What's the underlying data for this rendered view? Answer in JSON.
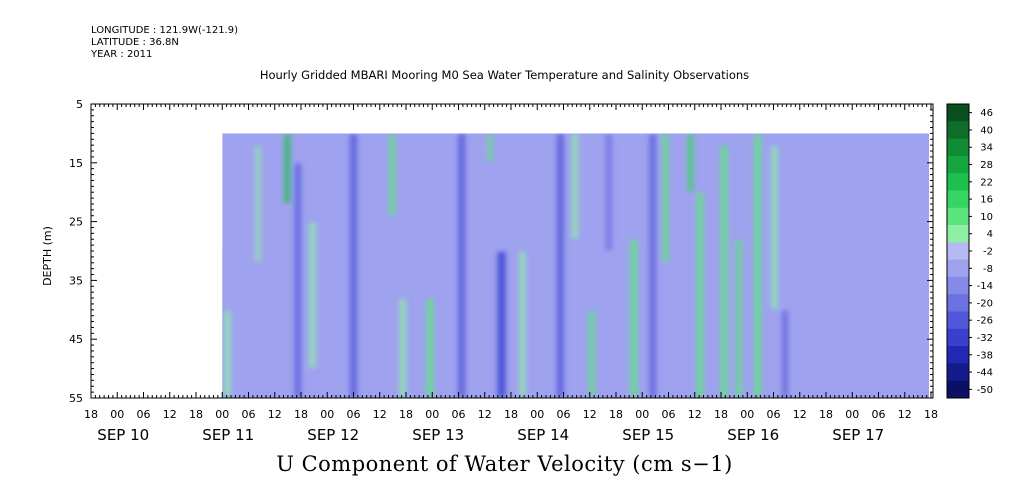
{
  "header": {
    "longitude": "LONGITUDE : 121.9W(-121.9)",
    "latitude": "LATITUDE : 36.8N",
    "year": "YEAR : 2011"
  },
  "chart_data": {
    "type": "heatmap",
    "title": "Hourly Gridded MBARI Mooring M0 Sea Water Temperature and Salinity Observations",
    "xlabel": "U Component of Water Velocity (cm s−1)",
    "ylabel": "DEPTH (m)",
    "ylim": [
      55,
      5
    ],
    "y_ticks": [
      5,
      15,
      25,
      35,
      45,
      55
    ],
    "x_hour_ticks": [
      "18",
      "00",
      "06",
      "12",
      "18",
      "00",
      "06",
      "12",
      "18",
      "00",
      "06",
      "12",
      "18",
      "00",
      "06",
      "12",
      "18",
      "00",
      "06",
      "12",
      "18",
      "00",
      "06",
      "12",
      "18",
      "00",
      "06",
      "12",
      "18",
      "00",
      "06",
      "12",
      "18"
    ],
    "x_day_labels": [
      "SEP 10",
      "SEP 11",
      "SEP 12",
      "SEP 13",
      "SEP 14",
      "SEP 15",
      "SEP 16",
      "SEP 17"
    ],
    "colorbar_labels": [
      "46",
      "40",
      "34",
      "28",
      "22",
      "16",
      "10",
      "4",
      "-2",
      "-8",
      "-14",
      "-20",
      "-26",
      "-32",
      "-38",
      "-44",
      "-50"
    ],
    "colorbar_colors": [
      "#0b4f1f",
      "#0e6e29",
      "#118b34",
      "#15a640",
      "#1cc04d",
      "#36d463",
      "#5ce47f",
      "#8ff0a5",
      "#b7b9f2",
      "#9fa2ef",
      "#868be9",
      "#6c71e2",
      "#5157d9",
      "#3840cd",
      "#2328b2",
      "#151a8c",
      "#0b0f66"
    ],
    "data_extent": {
      "depth_top": 10,
      "depth_bottom": 55
    },
    "bands": [
      {
        "day": 1.54,
        "width": 0.07,
        "value": 16,
        "depth_range": [
          10,
          28
        ]
      },
      {
        "day": 1.62,
        "width": 0.05,
        "value": 22,
        "depth_range": [
          10,
          20
        ]
      },
      {
        "day": 1.78,
        "width": 0.06,
        "value": 6,
        "depth_range": [
          10,
          40
        ]
      },
      {
        "day": 1.95,
        "width": 0.05,
        "value": -20,
        "depth_range": [
          30,
          55
        ]
      },
      {
        "day": 2.05,
        "width": 0.05,
        "value": 6,
        "depth_range": [
          40,
          55
        ]
      },
      {
        "day": 2.34,
        "width": 0.04,
        "value": 5,
        "depth_range": [
          12,
          32
        ]
      },
      {
        "day": 2.62,
        "width": 0.05,
        "value": 22,
        "depth_range": [
          10,
          22
        ]
      },
      {
        "day": 2.72,
        "width": 0.05,
        "value": -24,
        "depth_range": [
          15,
          55
        ]
      },
      {
        "day": 2.86,
        "width": 0.05,
        "value": 6,
        "depth_range": [
          25,
          50
        ]
      },
      {
        "day": 3.25,
        "width": 0.06,
        "value": -22,
        "depth_range": [
          10,
          55
        ]
      },
      {
        "day": 3.62,
        "width": 0.05,
        "value": 12,
        "depth_range": [
          10,
          24
        ]
      },
      {
        "day": 3.72,
        "width": 0.05,
        "value": 5,
        "depth_range": [
          38,
          55
        ]
      },
      {
        "day": 3.98,
        "width": 0.06,
        "value": 10,
        "depth_range": [
          38,
          55
        ]
      },
      {
        "day": 4.28,
        "width": 0.06,
        "value": -26,
        "depth_range": [
          10,
          55
        ]
      },
      {
        "day": 4.55,
        "width": 0.04,
        "value": 14,
        "depth_range": [
          10,
          15
        ]
      },
      {
        "day": 4.66,
        "width": 0.07,
        "value": -30,
        "depth_range": [
          30,
          55
        ]
      },
      {
        "day": 4.86,
        "width": 0.05,
        "value": 8,
        "depth_range": [
          30,
          55
        ]
      },
      {
        "day": 5.22,
        "width": 0.06,
        "value": -22,
        "depth_range": [
          10,
          55
        ]
      },
      {
        "day": 5.36,
        "width": 0.05,
        "value": 6,
        "depth_range": [
          10,
          28
        ]
      },
      {
        "day": 5.52,
        "width": 0.05,
        "value": 10,
        "depth_range": [
          40,
          55
        ]
      },
      {
        "day": 5.68,
        "width": 0.05,
        "value": -16,
        "depth_range": [
          10,
          30
        ]
      },
      {
        "day": 5.92,
        "width": 0.06,
        "value": 12,
        "depth_range": [
          28,
          55
        ]
      },
      {
        "day": 6.1,
        "width": 0.05,
        "value": -24,
        "depth_range": [
          10,
          55
        ]
      },
      {
        "day": 6.22,
        "width": 0.05,
        "value": 10,
        "depth_range": [
          10,
          32
        ]
      },
      {
        "day": 6.46,
        "width": 0.05,
        "value": 16,
        "depth_range": [
          10,
          20
        ]
      },
      {
        "day": 6.55,
        "width": 0.06,
        "value": 10,
        "depth_range": [
          20,
          55
        ]
      },
      {
        "day": 6.78,
        "width": 0.06,
        "value": 12,
        "depth_range": [
          12,
          55
        ]
      },
      {
        "day": 6.92,
        "width": 0.05,
        "value": 14,
        "depth_range": [
          28,
          55
        ]
      },
      {
        "day": 7.1,
        "width": 0.06,
        "value": 10,
        "depth_range": [
          10,
          55
        ]
      },
      {
        "day": 7.26,
        "width": 0.05,
        "value": 8,
        "depth_range": [
          12,
          40
        ]
      },
      {
        "day": 7.36,
        "width": 0.04,
        "value": -22,
        "depth_range": [
          40,
          55
        ]
      }
    ]
  }
}
